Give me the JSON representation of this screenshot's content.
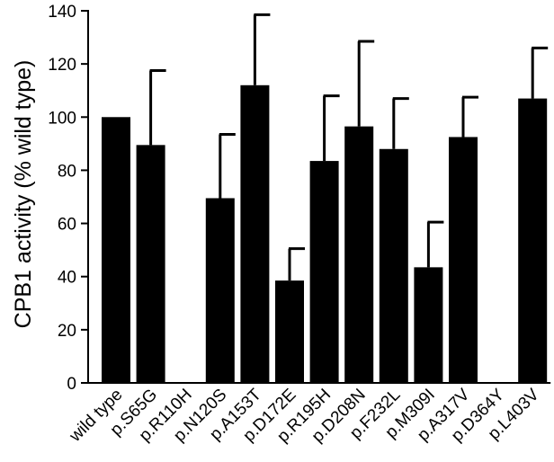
{
  "chart_data": {
    "type": "bar",
    "title": "",
    "xlabel": "",
    "ylabel": "CPB1 activity (% wild type)",
    "ylim": [
      0,
      140
    ],
    "yticks": [
      0,
      20,
      40,
      60,
      80,
      100,
      120,
      140
    ],
    "categories": [
      "wild type",
      "p.S65G",
      "p.R110H",
      "p.N120S",
      "p.A153T",
      "p.D172E",
      "p.R195H",
      "p.D208N",
      "p.F232L",
      "p.M309I",
      "p.A317V",
      "p.D364Y",
      "p.L403V"
    ],
    "values": [
      100,
      89.5,
      0,
      69.5,
      112,
      38.5,
      83.5,
      96.5,
      88,
      43.5,
      92.5,
      0,
      107
    ],
    "error_upper": [
      null,
      117.5,
      null,
      93.5,
      138.5,
      50.5,
      108,
      128.5,
      107,
      60.5,
      107.5,
      null,
      126
    ],
    "bar_color": "#000000",
    "grid": false,
    "legend": "none"
  }
}
